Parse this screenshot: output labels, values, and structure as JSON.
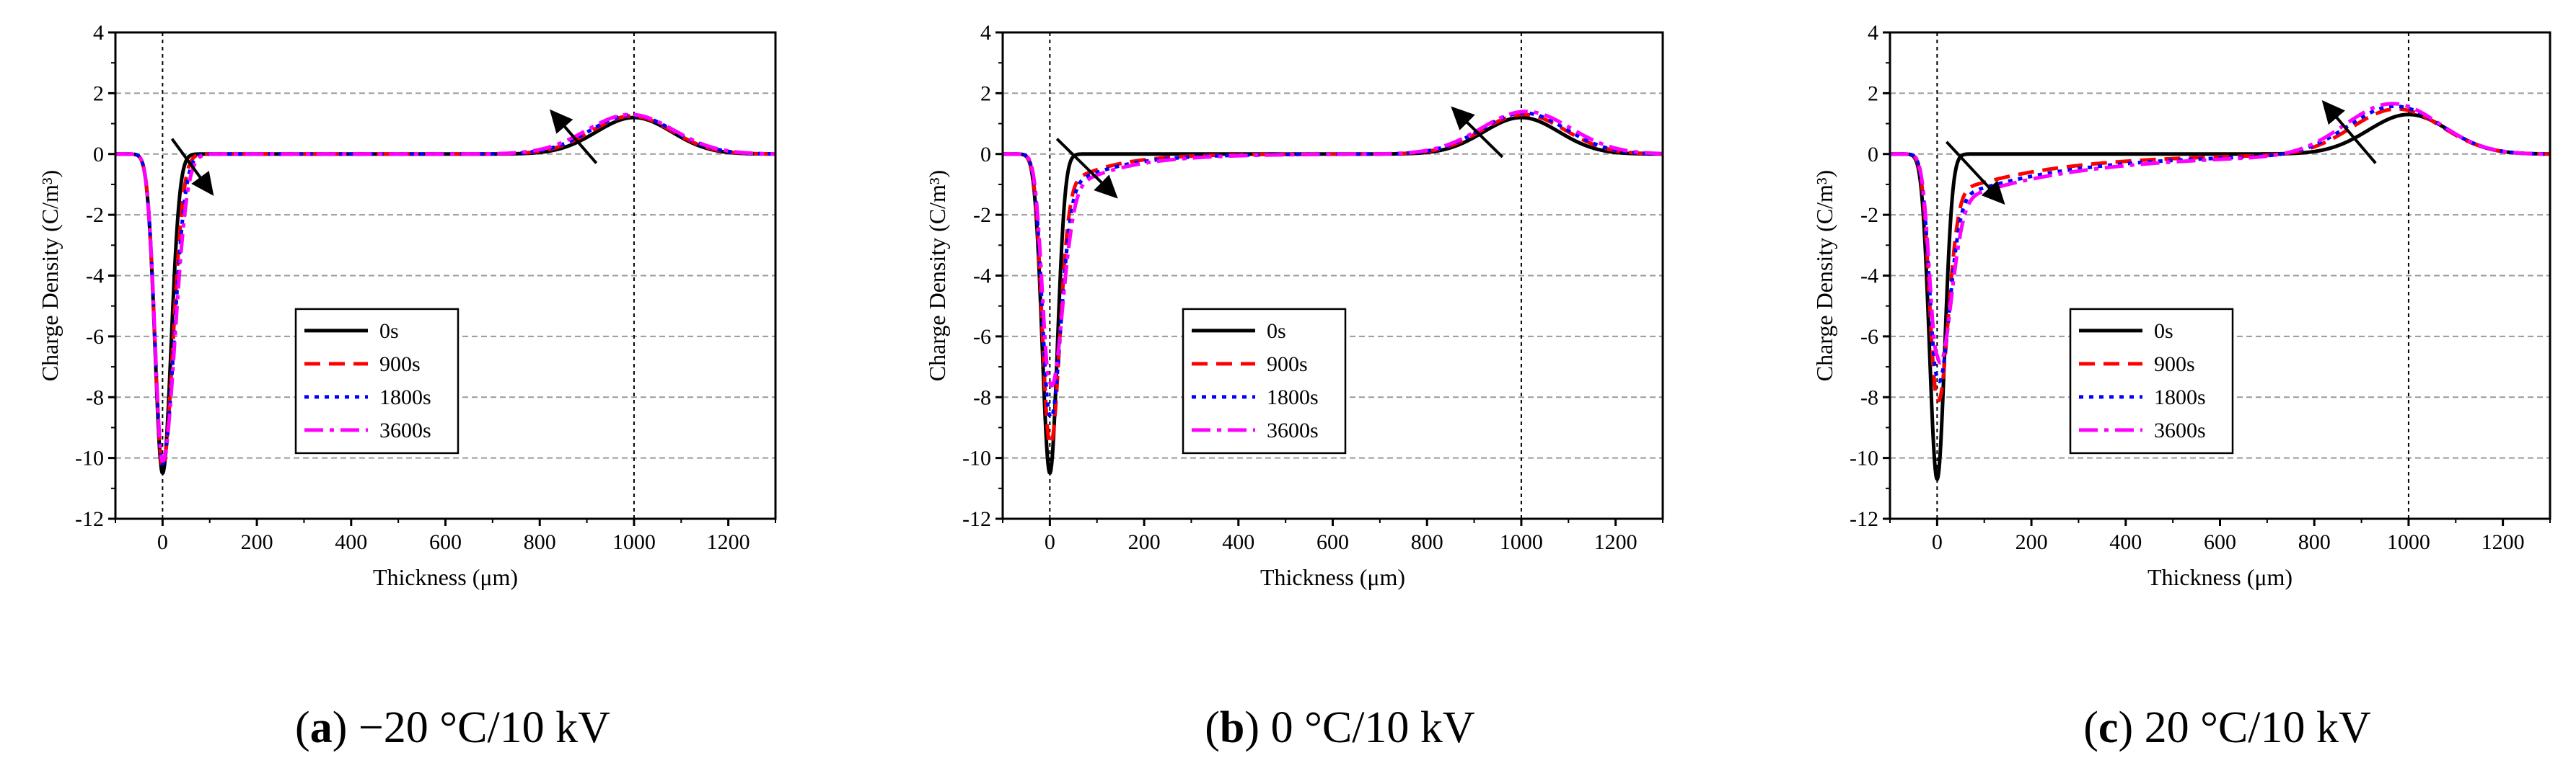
{
  "colors": {
    "s0": "#000000",
    "s900": "#ff0000",
    "s1800": "#0000ff",
    "s3600": "#ff00ff",
    "grid": "#9a9a9a"
  },
  "legend_labels": [
    "0s",
    "900s",
    "1800s",
    "3600s"
  ],
  "chart_data": [
    {
      "type": "line",
      "caption": {
        "letter": "a",
        "text": " −20 °C/10 kV"
      },
      "xlabel": "Thickness (μm)",
      "ylabel": "Charge Density (C/m³)",
      "xlim": [
        -100,
        1300
      ],
      "ylim": [
        -12,
        4
      ],
      "xticks": [
        0,
        200,
        400,
        600,
        800,
        1000,
        1200
      ],
      "yticks": [
        4,
        2,
        0,
        -2,
        -4,
        -6,
        -8,
        -10,
        -12
      ],
      "vlines": [
        0,
        1000
      ],
      "grid": "horizontal dashed",
      "legend": "center-lower",
      "series": [
        {
          "name": "0s",
          "negPeak": -10.5,
          "negRight": 18,
          "tailAmp": 0,
          "tailDecay": 40,
          "posPeak": 1.2,
          "posCenter": 1000,
          "posWidth": 80
        },
        {
          "name": "900s",
          "negPeak": -10.3,
          "negRight": 22,
          "tailAmp": 0,
          "tailDecay": 40,
          "posPeak": 1.25,
          "posCenter": 995,
          "posWidth": 85
        },
        {
          "name": "1800s",
          "negPeak": -10.2,
          "negRight": 24,
          "tailAmp": 0,
          "tailDecay": 40,
          "posPeak": 1.28,
          "posCenter": 995,
          "posWidth": 88
        },
        {
          "name": "3600s",
          "negPeak": -10.1,
          "negRight": 26,
          "tailAmp": 0,
          "tailDecay": 40,
          "posPeak": 1.3,
          "posCenter": 992,
          "posWidth": 92
        }
      ],
      "arrows": [
        {
          "from": [
            20,
            0.5
          ],
          "to": [
            105,
            -1.3
          ]
        },
        {
          "from": [
            920,
            -0.3
          ],
          "to": [
            825,
            1.4
          ]
        }
      ]
    },
    {
      "type": "line",
      "caption": {
        "letter": "b",
        "text": " 0 °C/10 kV"
      },
      "xlabel": "Thickness (μm)",
      "ylabel": "Charge Density (C/m³)",
      "xlim": [
        -100,
        1300
      ],
      "ylim": [
        -12,
        4
      ],
      "xticks": [
        0,
        200,
        400,
        600,
        800,
        1000,
        1200
      ],
      "yticks": [
        4,
        2,
        0,
        -2,
        -4,
        -6,
        -8,
        -10,
        -12
      ],
      "vlines": [
        0,
        1000
      ],
      "grid": "horizontal dashed",
      "legend": "center-lower",
      "series": [
        {
          "name": "0s",
          "negPeak": -10.5,
          "negRight": 16,
          "tailAmp": 0,
          "tailDecay": 40,
          "posPeak": 1.2,
          "posCenter": 1000,
          "posWidth": 80
        },
        {
          "name": "900s",
          "negPeak": -9.5,
          "negRight": 20,
          "tailAmp": -0.9,
          "tailDecay": 100,
          "posPeak": 1.3,
          "posCenter": 1005,
          "posWidth": 88
        },
        {
          "name": "1800s",
          "negPeak": -8.6,
          "negRight": 22,
          "tailAmp": -1.0,
          "tailDecay": 110,
          "posPeak": 1.35,
          "posCenter": 1005,
          "posWidth": 90
        },
        {
          "name": "3600s",
          "negPeak": -7.5,
          "negRight": 25,
          "tailAmp": -1.1,
          "tailDecay": 120,
          "posPeak": 1.4,
          "posCenter": 1010,
          "posWidth": 95
        }
      ],
      "arrows": [
        {
          "from": [
            15,
            0.5
          ],
          "to": [
            140,
            -1.4
          ]
        },
        {
          "from": [
            960,
            -0.1
          ],
          "to": [
            855,
            1.5
          ]
        }
      ]
    },
    {
      "type": "line",
      "caption": {
        "letter": "c",
        "text": " 20 °C/10 kV"
      },
      "xlabel": "Thickness (μm)",
      "ylabel": "Charge Density (C/m³)",
      "xlim": [
        -100,
        1300
      ],
      "ylim": [
        -12,
        4
      ],
      "xticks": [
        0,
        200,
        400,
        600,
        800,
        1000,
        1200
      ],
      "yticks": [
        4,
        2,
        0,
        -2,
        -4,
        -6,
        -8,
        -10,
        -12
      ],
      "vlines": [
        0,
        1000
      ],
      "grid": "horizontal dashed",
      "legend": "center-lower",
      "series": [
        {
          "name": "0s",
          "negPeak": -10.7,
          "negRight": 16,
          "tailAmp": 0,
          "tailDecay": 40,
          "posPeak": 1.3,
          "posCenter": 1000,
          "posWidth": 85
        },
        {
          "name": "900s",
          "negPeak": -8.0,
          "negRight": 22,
          "tailAmp": -1.2,
          "tailDecay": 220,
          "posPeak": 1.5,
          "posCenter": 975,
          "posWidth": 95
        },
        {
          "name": "1800s",
          "negPeak": -7.3,
          "negRight": 24,
          "tailAmp": -1.4,
          "tailDecay": 240,
          "posPeak": 1.6,
          "posCenter": 970,
          "posWidth": 98
        },
        {
          "name": "3600s",
          "negPeak": -6.6,
          "negRight": 27,
          "tailAmp": -1.5,
          "tailDecay": 260,
          "posPeak": 1.7,
          "posCenter": 965,
          "posWidth": 100
        }
      ],
      "arrows": [
        {
          "from": [
            20,
            0.4
          ],
          "to": [
            140,
            -1.6
          ]
        },
        {
          "from": [
            930,
            -0.3
          ],
          "to": [
            820,
            1.7
          ]
        }
      ]
    }
  ]
}
